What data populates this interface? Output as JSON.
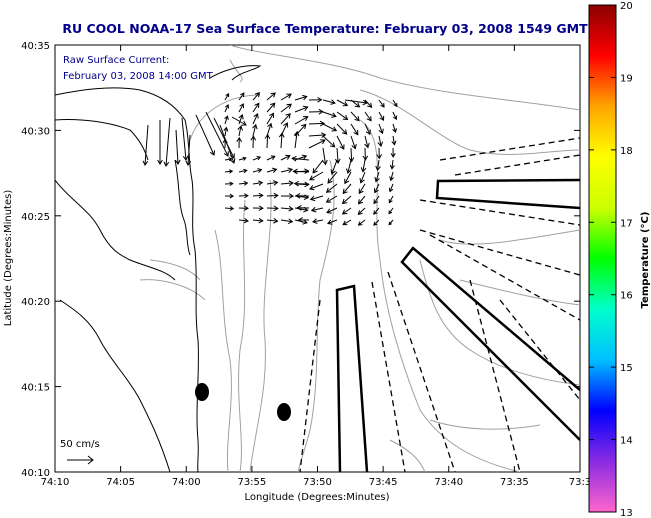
{
  "title": "RU COOL  NOAA-17  Sea Surface Temperature:  February 03, 2008 1549 GMT",
  "current_label": "Raw Surface Current:",
  "current_time": "February 03, 2008 14:00 GMT",
  "scale_label": "50 cm/s",
  "xlabel": "Longitude (Degrees:Minutes)",
  "ylabel": "Latitude (Degrees:Minutes)",
  "x_ticks": [
    "74:10",
    "74:05",
    "74:00",
    "73:55",
    "73:50",
    "73:45",
    "73:40",
    "73:35",
    "73:3"
  ],
  "y_ticks": [
    "40:35",
    "40:30",
    "40:25",
    "40:20",
    "40:15",
    "40:10"
  ],
  "colorbar": {
    "label": "Temperature (°C)",
    "ticks": [
      "20",
      "19",
      "18",
      "17",
      "16",
      "15",
      "14",
      "13"
    ],
    "min": 13,
    "max": 20,
    "colors": [
      "#ff66cc",
      "#8a2be2",
      "#0000ff",
      "#00bfff",
      "#00ffcc",
      "#00ff00",
      "#ccff00",
      "#ffff00",
      "#ffa500",
      "#ff0000",
      "#8b0000"
    ]
  },
  "colors": {
    "title": "#00008b",
    "contour": "#a0a0a0",
    "coast": "#000000"
  }
}
